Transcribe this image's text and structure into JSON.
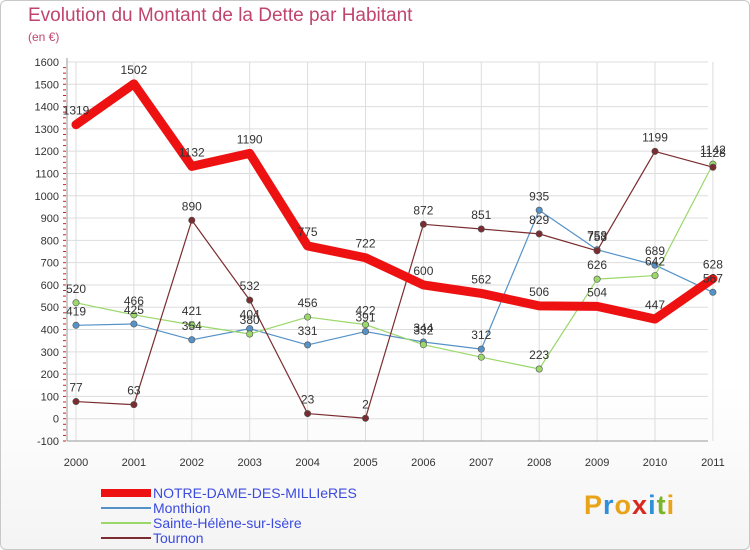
{
  "title": "Evolution du Montant de la Dette par Habitant",
  "subtitle": "(en €)",
  "logo": [
    "P",
    "r",
    "o",
    "x",
    "i",
    "t",
    "i"
  ],
  "logo_colors": [
    "#e8a318",
    "#2f8fd8",
    "#e8a318",
    "#d8281f",
    "#2f8fd8",
    "#7ab428",
    "#e8a318"
  ],
  "chart_data": {
    "type": "line",
    "categories": [
      "2000",
      "2001",
      "2002",
      "2003",
      "2004",
      "2005",
      "2006",
      "2007",
      "2008",
      "2009",
      "2010",
      "2011"
    ],
    "ylim": [
      -100,
      1600
    ],
    "yticks": [
      "-100",
      "0",
      "100",
      "200",
      "300",
      "400",
      "500",
      "600",
      "700",
      "800",
      "900",
      "1000",
      "1100",
      "1200",
      "1300",
      "1400",
      "1500",
      "1600"
    ],
    "grid": true,
    "legend_position": "bottom-left",
    "series": [
      {
        "name": "Monthion",
        "color": "#5592c8",
        "values": [
          419,
          425,
          354,
          404,
          331,
          391,
          344,
          312,
          935,
          758,
          689,
          567
        ],
        "labels": [
          "419",
          "425",
          "354",
          "404",
          "331",
          "391",
          "344",
          "312",
          "935",
          "758",
          "689",
          "567"
        ]
      },
      {
        "name": "Sainte-Hélène-sur-Isère",
        "color": "#9ad86a",
        "values": [
          520,
          466,
          421,
          380,
          456,
          422,
          332,
          276,
          223,
          626,
          642,
          1142
        ],
        "labels": [
          "520",
          "466",
          "421",
          "380",
          "456",
          "422",
          "332",
          "",
          "223",
          "626",
          "642",
          "1142"
        ]
      },
      {
        "name": "Tournon",
        "color": "#7b2c30",
        "values": [
          77,
          63,
          890,
          532,
          23,
          2,
          872,
          851,
          829,
          753,
          1199,
          1128
        ],
        "labels": [
          "77",
          "63",
          "890",
          "532",
          "23",
          "2",
          "872",
          "851",
          "829",
          "753",
          "1199",
          "1128"
        ]
      },
      {
        "name": "NOTRE-DAME-DES-MILLIeRES",
        "color": "#ee1111",
        "values": [
          1319,
          1502,
          1132,
          1190,
          775,
          722,
          600,
          562,
          506,
          504,
          447,
          628
        ],
        "labels": [
          "1319",
          "1502",
          "1132",
          "1190",
          "775",
          "722",
          "600",
          "562",
          "506",
          "504",
          "447",
          "628"
        ]
      }
    ]
  },
  "legend": [
    {
      "label": "NOTRE-DAME-DES-MILLIeRES",
      "color": "#ee1111"
    },
    {
      "label": "Monthion",
      "color": "#5592c8"
    },
    {
      "label": "Sainte-Hélène-sur-Isère",
      "color": "#9ad86a"
    },
    {
      "label": "Tournon",
      "color": "#7b2c30"
    }
  ]
}
